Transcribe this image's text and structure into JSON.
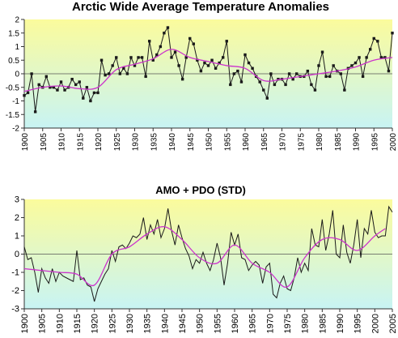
{
  "chart_data": [
    {
      "type": "line",
      "title": "Arctic Wide Average Temperature Anomalies",
      "xlabel": "",
      "ylabel": "",
      "xlim": [
        1900,
        2000
      ],
      "ylim": [
        -2,
        2
      ],
      "xticks": [
        "1900",
        "1905",
        "1910",
        "1915",
        "1920",
        "1925",
        "1930",
        "1935",
        "1940",
        "1945",
        "1950",
        "1955",
        "1960",
        "1965",
        "1970",
        "1975",
        "1980",
        "1985",
        "1990",
        "1995",
        "2000"
      ],
      "yticks": [
        "-2",
        "-1.5",
        "-1",
        "-0.5",
        "0",
        "0.5",
        "1",
        "1.5",
        "2"
      ],
      "background_gradient": [
        "#fbfb9c",
        "#c8f4f4"
      ],
      "grid": false,
      "series": [
        {
          "color": "#1a1a1a",
          "marker": "square",
          "x": [
            1900,
            1901,
            1902,
            1903,
            1904,
            1905,
            1906,
            1907,
            1908,
            1909,
            1910,
            1911,
            1912,
            1913,
            1914,
            1915,
            1916,
            1917,
            1918,
            1919,
            1920,
            1921,
            1922,
            1923,
            1924,
            1925,
            1926,
            1927,
            1928,
            1929,
            1930,
            1931,
            1932,
            1933,
            1934,
            1935,
            1936,
            1937,
            1938,
            1939,
            1940,
            1941,
            1942,
            1943,
            1944,
            1945,
            1946,
            1947,
            1948,
            1949,
            1950,
            1951,
            1952,
            1953,
            1954,
            1955,
            1956,
            1957,
            1958,
            1959,
            1960,
            1961,
            1962,
            1963,
            1964,
            1965,
            1966,
            1967,
            1968,
            1969,
            1970,
            1971,
            1972,
            1973,
            1974,
            1975,
            1976,
            1977,
            1978,
            1979,
            1980,
            1981,
            1982,
            1983,
            1984,
            1985,
            1986,
            1987,
            1988,
            1989,
            1990,
            1991,
            1992,
            1993,
            1994,
            1995,
            1996,
            1997,
            1998,
            1999,
            2000
          ],
          "y": [
            -0.8,
            -0.7,
            0.0,
            -1.4,
            -0.4,
            -0.5,
            -0.1,
            -0.5,
            -0.5,
            -0.6,
            -0.3,
            -0.6,
            -0.5,
            -0.2,
            -0.4,
            -0.3,
            -0.9,
            -0.5,
            -1.0,
            -0.7,
            -0.7,
            0.5,
            -0.05,
            0.0,
            0.3,
            0.6,
            0.0,
            0.2,
            0.0,
            0.6,
            0.3,
            0.6,
            0.6,
            -0.1,
            1.2,
            0.5,
            0.7,
            1.0,
            1.5,
            1.7,
            0.6,
            0.8,
            0.3,
            -0.2,
            0.6,
            1.3,
            1.1,
            0.5,
            0.1,
            0.4,
            0.3,
            0.5,
            0.2,
            0.4,
            0.6,
            1.2,
            -0.4,
            0.0,
            0.1,
            -0.3,
            0.7,
            0.4,
            0.2,
            -0.1,
            -0.3,
            -0.6,
            -0.9,
            0.0,
            -0.4,
            -0.2,
            -0.2,
            -0.4,
            0.0,
            -0.2,
            0.0,
            -0.1,
            -0.1,
            0.1,
            -0.4,
            -0.6,
            0.3,
            0.8,
            -0.1,
            -0.1,
            0.3,
            0.1,
            0.0,
            -0.6,
            0.2,
            0.3,
            0.4,
            0.6,
            -0.1,
            0.6,
            0.9,
            1.3,
            1.2,
            0.6,
            0.6,
            0.1,
            1.5
          ]
        },
        {
          "color": "#cc33cc",
          "smooth": true,
          "x": [
            1900,
            1905,
            1910,
            1915,
            1920,
            1925,
            1930,
            1935,
            1940,
            1945,
            1950,
            1955,
            1960,
            1965,
            1970,
            1975,
            1980,
            1985,
            1990,
            1995,
            2000
          ],
          "y": [
            -0.65,
            -0.5,
            -0.45,
            -0.55,
            -0.5,
            0.15,
            0.35,
            0.55,
            0.9,
            0.6,
            0.45,
            0.3,
            0.2,
            -0.25,
            -0.2,
            -0.1,
            0.0,
            0.1,
            0.25,
            0.5,
            0.6
          ]
        }
      ]
    },
    {
      "type": "line",
      "title": "AMO + PDO (STD)",
      "xlabel": "",
      "ylabel": "",
      "xlim": [
        1900,
        2005
      ],
      "ylim": [
        -3,
        3
      ],
      "xticks": [
        "1900",
        "1905",
        "1910",
        "1915",
        "1920",
        "1925",
        "1930",
        "1935",
        "1940",
        "1945",
        "1950",
        "1955",
        "1960",
        "1965",
        "1970",
        "1975",
        "1980",
        "1985",
        "1990",
        "1995",
        "2000",
        "2005"
      ],
      "yticks": [
        "-3",
        "-2",
        "-1",
        "0",
        "1",
        "2",
        "3"
      ],
      "background_gradient": [
        "#fbfb9c",
        "#c8f4f4"
      ],
      "grid": false,
      "series": [
        {
          "color": "#1a1a1a",
          "marker": "none",
          "x": [
            1900,
            1901,
            1902,
            1903,
            1904,
            1905,
            1906,
            1907,
            1908,
            1909,
            1910,
            1911,
            1912,
            1913,
            1914,
            1915,
            1916,
            1917,
            1918,
            1919,
            1920,
            1921,
            1922,
            1923,
            1924,
            1925,
            1926,
            1927,
            1928,
            1929,
            1930,
            1931,
            1932,
            1933,
            1934,
            1935,
            1936,
            1937,
            1938,
            1939,
            1940,
            1941,
            1942,
            1943,
            1944,
            1945,
            1946,
            1947,
            1948,
            1949,
            1950,
            1951,
            1952,
            1953,
            1954,
            1955,
            1956,
            1957,
            1958,
            1959,
            1960,
            1961,
            1962,
            1963,
            1964,
            1965,
            1966,
            1967,
            1968,
            1969,
            1970,
            1971,
            1972,
            1973,
            1974,
            1975,
            1976,
            1977,
            1978,
            1979,
            1980,
            1981,
            1982,
            1983,
            1984,
            1985,
            1986,
            1987,
            1988,
            1989,
            1990,
            1991,
            1992,
            1993,
            1994,
            1995,
            1996,
            1997,
            1998,
            1999,
            2000,
            2001,
            2002,
            2003,
            2004,
            2005
          ],
          "y": [
            0.4,
            -0.3,
            -0.2,
            -1.0,
            -2.1,
            -0.8,
            -1.3,
            -1.6,
            -0.8,
            -1.5,
            -1.0,
            -1.2,
            -1.3,
            -1.4,
            -1.5,
            0.2,
            -1.4,
            -1.3,
            -1.7,
            -1.8,
            -2.6,
            -1.9,
            -1.5,
            -1.1,
            -0.8,
            0.2,
            -0.4,
            0.4,
            0.5,
            0.3,
            0.6,
            1.0,
            0.9,
            1.1,
            2.0,
            0.8,
            1.6,
            1.1,
            1.9,
            0.9,
            1.4,
            2.5,
            1.3,
            0.5,
            1.6,
            0.9,
            0.3,
            -0.1,
            -0.8,
            -0.3,
            -0.5,
            0.1,
            -0.5,
            -0.9,
            -0.3,
            0.6,
            -0.2,
            -1.7,
            -0.5,
            1.2,
            0.5,
            1.1,
            -0.2,
            -0.3,
            -0.9,
            -0.6,
            -0.4,
            -0.6,
            -1.6,
            -0.7,
            -0.5,
            -2.2,
            -2.4,
            -1.6,
            -1.2,
            -1.9,
            -2.0,
            -1.3,
            -0.2,
            -1.0,
            -0.5,
            -0.9,
            1.4,
            0.5,
            0.4,
            1.9,
            0.2,
            1.1,
            2.4,
            0.0,
            -0.2,
            1.6,
            0.1,
            -0.5,
            0.5,
            1.9,
            -0.2,
            1.4,
            1.1,
            2.4,
            1.2,
            0.9,
            1.0,
            1.0,
            2.6,
            2.3
          ]
        },
        {
          "color": "#cc33cc",
          "smooth": true,
          "x": [
            1900,
            1905,
            1910,
            1915,
            1920,
            1925,
            1930,
            1935,
            1940,
            1945,
            1950,
            1955,
            1960,
            1965,
            1970,
            1975,
            1980,
            1985,
            1990,
            1995,
            2000,
            2003
          ],
          "y": [
            -0.8,
            -0.9,
            -1.0,
            -1.1,
            -1.7,
            0.0,
            0.4,
            1.1,
            1.5,
            0.8,
            -0.2,
            -0.5,
            0.5,
            -0.5,
            -1.0,
            -1.8,
            -0.2,
            0.8,
            0.8,
            0.2,
            1.0,
            1.4
          ]
        }
      ]
    }
  ]
}
